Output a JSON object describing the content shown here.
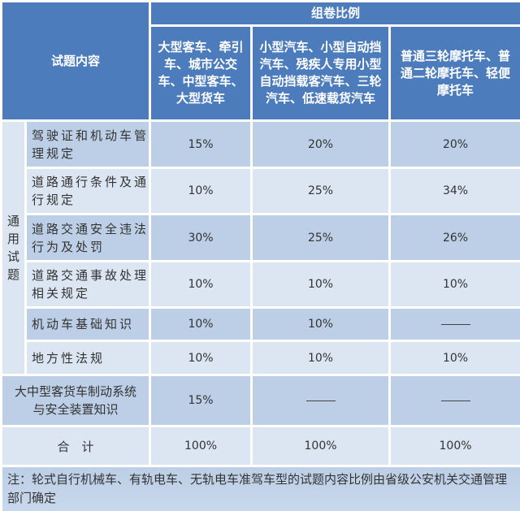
{
  "header": {
    "content_label": "试题内容",
    "ratio_label": "组卷比例",
    "columns": [
      "大型客车、牵引车、城市公交车、中型客车、大型货车",
      "小型汽车、小型自动挡汽车、残疾人专用小型自动挡载客汽车、三轮汽车、低速载货汽车",
      "普通三轮摩托车、普通二轮摩托车、轻便摩托车"
    ]
  },
  "group_label": "通用试题",
  "rows": [
    {
      "label": "驾驶证和机动车管理规定",
      "values": [
        "15%",
        "20%",
        "20%"
      ]
    },
    {
      "label": "道路通行条件及通行规定",
      "values": [
        "10%",
        "25%",
        "34%"
      ]
    },
    {
      "label": "道路交通安全违法行为及处罚",
      "values": [
        "30%",
        "25%",
        "26%"
      ]
    },
    {
      "label": "道路交通事故处理相关规定",
      "values": [
        "10%",
        "10%",
        "10%"
      ]
    },
    {
      "label": "机动车基础知识",
      "values": [
        "10%",
        "10%",
        "——"
      ]
    },
    {
      "label": "地方性法规",
      "values": [
        "10%",
        "10%",
        "10%"
      ]
    }
  ],
  "special_row": {
    "label": "大中型客货车制动系统与安全装置知识",
    "values": [
      "15%",
      "——",
      "——"
    ]
  },
  "total_row": {
    "label": "合　计",
    "values": [
      "100%",
      "100%",
      "100%"
    ]
  },
  "note": "注：轮式自行机械车、有轨电车、无轨电车准驾车型的试题内容比例由省级公安机关交通管理部门确定",
  "colors": {
    "header": "#4c7cbb",
    "row_dark": "#bccfe6",
    "row_light": "#dce6f2"
  }
}
